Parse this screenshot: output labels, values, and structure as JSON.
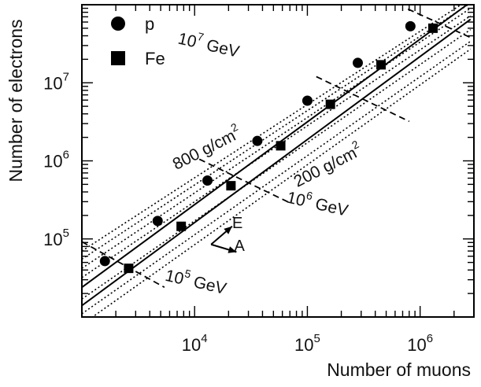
{
  "chart_data": {
    "type": "scatter",
    "xlabel": "Number of muons",
    "ylabel": "Number of electrons",
    "x_scale": "log",
    "y_scale": "log",
    "xlim": [
      1000,
      3000000
    ],
    "ylim": [
      10000,
      100000000
    ],
    "x_ticks": [
      {
        "value": 10000,
        "base": "10",
        "exp": "4"
      },
      {
        "value": 100000,
        "base": "10",
        "exp": "5"
      },
      {
        "value": 1000000,
        "base": "10",
        "exp": "6"
      }
    ],
    "y_ticks": [
      {
        "value": 100000,
        "base": "10",
        "exp": "5"
      },
      {
        "value": 1000000,
        "base": "10",
        "exp": "6"
      },
      {
        "value": 10000000,
        "base": "10",
        "exp": "7"
      }
    ],
    "legend": {
      "placement": "top-left",
      "entries": [
        {
          "name": "p",
          "marker": "circle"
        },
        {
          "name": "Fe",
          "marker": "square"
        }
      ]
    },
    "series": [
      {
        "name": "p",
        "marker": "circle",
        "points": [
          {
            "x": 1600,
            "y": 52000
          },
          {
            "x": 4700,
            "y": 170000
          },
          {
            "x": 13000,
            "y": 560000
          },
          {
            "x": 36000,
            "y": 1800000
          },
          {
            "x": 100000,
            "y": 5900000
          },
          {
            "x": 280000,
            "y": 18000000
          },
          {
            "x": 820000,
            "y": 53000000
          }
        ]
      },
      {
        "name": "Fe",
        "marker": "square",
        "points": [
          {
            "x": 2600,
            "y": 42000
          },
          {
            "x": 7600,
            "y": 145000
          },
          {
            "x": 21000,
            "y": 480000
          },
          {
            "x": 58000,
            "y": 1560000
          },
          {
            "x": 160000,
            "y": 5300000
          },
          {
            "x": 450000,
            "y": 17000000
          },
          {
            "x": 1300000,
            "y": 50000000
          }
        ]
      }
    ],
    "solid_lines": [
      {
        "p1": [
          1000,
          24000
        ],
        "p2": [
          2800000,
          108000000
        ]
      },
      {
        "p1": [
          1000,
          14000
        ],
        "p2": [
          2800000,
          65000000
        ]
      }
    ],
    "dotted_lines": {
      "p1_x": 1000,
      "p2_x": 2800000,
      "p1_y": [
        70000,
        55000,
        42000,
        32000,
        17000,
        11000,
        8000
      ],
      "p2_y": [
        120000000,
        105000000,
        90000000,
        72000000,
        48000000,
        34000000,
        27000000
      ]
    },
    "energy_lines": [
      {
        "p1": [
          1000,
          92000
        ],
        "p2": [
          5400,
          24000
        ]
      },
      {
        "p1": [
          11000,
          1050000
        ],
        "p2": [
          70000,
          290000
        ]
      },
      {
        "p1": [
          120000,
          12000000
        ],
        "p2": [
          800000,
          3200000
        ]
      },
      {
        "p1": [
          780000,
          88000000
        ],
        "p2": [
          2800000,
          38000000
        ]
      }
    ],
    "annotations": [
      {
        "base": "10",
        "exp": "5",
        "unit": " GeV",
        "x": 10000,
        "y": 24000,
        "angle": 13
      },
      {
        "base": "10",
        "exp": "6",
        "unit": " GeV",
        "x": 120000,
        "y": 240000,
        "angle": 13
      },
      {
        "base": "10",
        "exp": "7",
        "unit": " GeV",
        "x": 13000,
        "y": 26000000,
        "angle": 13
      },
      {
        "text": "800 g/cm",
        "sup": "2",
        "x": 13500,
        "y": 1250000,
        "angle": -27
      },
      {
        "text": "200 g/cm",
        "sup": "2",
        "x": 160000,
        "y": 750000,
        "angle": -27
      },
      {
        "text": "E",
        "x": 24000,
        "y": 138000,
        "angle": 0
      },
      {
        "text": "A",
        "x": 25000,
        "y": 70000,
        "angle": 0
      }
    ],
    "arrows": [
      {
        "name": "E",
        "from": [
          14000,
          85000
        ],
        "to": [
          21500,
          145000
        ]
      },
      {
        "name": "A",
        "from": [
          14000,
          85000
        ],
        "to": [
          23500,
          68000
        ]
      }
    ]
  }
}
